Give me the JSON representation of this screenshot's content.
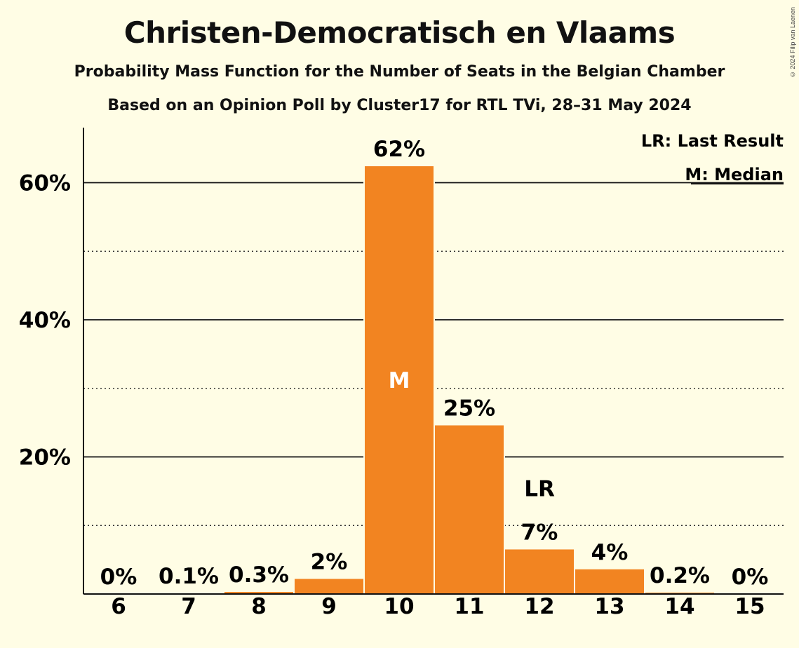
{
  "header": {
    "title": "Christen-Democratisch en Vlaams",
    "subtitle": "Probability Mass Function for the Number of Seats in the Belgian Chamber",
    "source": "Based on an Opinion Poll by Cluster17 for RTL TVi, 28–31 May 2024",
    "copyright": "© 2024 Filip van Laenen"
  },
  "legend": {
    "last_result": "LR: Last Result",
    "median": "M: Median"
  },
  "colors": {
    "bar": "#F28421",
    "background": "#FFFDE5",
    "text": "#111111"
  },
  "chart_data": {
    "type": "bar",
    "title": "Christen-Democratisch en Vlaams",
    "categories": [
      "6",
      "7",
      "8",
      "9",
      "10",
      "11",
      "12",
      "13",
      "14",
      "15"
    ],
    "values": [
      0,
      0.1,
      0.3,
      2.2,
      62.4,
      24.6,
      6.5,
      3.6,
      0.2,
      0
    ],
    "data_labels": [
      "0%",
      "0.1%",
      "0.3%",
      "2%",
      "62%",
      "25%",
      "7%",
      "4%",
      "0.2%",
      "0%"
    ],
    "yticks": [
      20,
      40,
      60
    ],
    "ytick_labels": [
      "20%",
      "40%",
      "60%"
    ],
    "minor_gridlines": [
      10,
      30,
      50
    ],
    "ylim": [
      0,
      68
    ],
    "median_category": "10",
    "median_marker": "M",
    "last_result_category": "12",
    "last_result_marker": "LR",
    "legend_position": "top-right",
    "xlabel": "",
    "ylabel": ""
  }
}
